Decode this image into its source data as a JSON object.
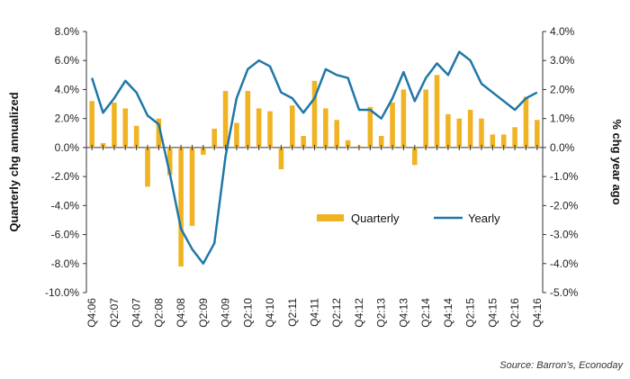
{
  "chart_data": {
    "type": "bar",
    "categories": [
      "Q4:06",
      "Q1:07",
      "Q2:07",
      "Q3:07",
      "Q4:07",
      "Q1:08",
      "Q2:08",
      "Q3:08",
      "Q4:08",
      "Q1:09",
      "Q2:09",
      "Q3:09",
      "Q4:09",
      "Q1:10",
      "Q2:10",
      "Q3:10",
      "Q4:10",
      "Q1:11",
      "Q2:11",
      "Q3:11",
      "Q4:11",
      "Q1:12",
      "Q2:12",
      "Q3:12",
      "Q4:12",
      "Q1:13",
      "Q2:13",
      "Q3:13",
      "Q4:13",
      "Q1:14",
      "Q2:14",
      "Q3:14",
      "Q4:14",
      "Q1:15",
      "Q2:15",
      "Q3:15",
      "Q4:15",
      "Q1:16",
      "Q2:16",
      "Q3:16",
      "Q4:16"
    ],
    "x_tick_labels": [
      "Q4:06",
      "Q2:07",
      "Q4:07",
      "Q2:08",
      "Q4:08",
      "Q2:09",
      "Q4:09",
      "Q2:10",
      "Q4:10",
      "Q2:11",
      "Q4:11",
      "Q2:12",
      "Q4:12",
      "Q2:13",
      "Q4:13",
      "Q2:14",
      "Q4:14",
      "Q2:15",
      "Q4:15",
      "Q2:16",
      "Q4:16"
    ],
    "series": [
      {
        "name": "Quarterly",
        "axis": "left",
        "kind": "bar",
        "color": "#f0b323",
        "values": [
          3.2,
          0.3,
          3.1,
          2.7,
          1.5,
          -2.7,
          2.0,
          -1.9,
          -8.2,
          -5.4,
          -0.5,
          1.3,
          3.9,
          1.7,
          3.9,
          2.7,
          2.5,
          -1.5,
          2.9,
          0.8,
          4.6,
          2.7,
          1.9,
          0.5,
          0.1,
          2.8,
          0.8,
          3.1,
          4.0,
          -1.2,
          4.0,
          5.0,
          2.3,
          2.0,
          2.6,
          2.0,
          0.9,
          0.9,
          1.4,
          3.5,
          1.9
        ]
      },
      {
        "name": "Yearly",
        "axis": "right",
        "kind": "line",
        "color": "#1f77a8",
        "values": [
          2.4,
          1.2,
          1.7,
          2.3,
          1.9,
          1.1,
          0.8,
          -0.9,
          -2.8,
          -3.5,
          -4.0,
          -3.3,
          -0.3,
          1.7,
          2.7,
          3.0,
          2.8,
          1.9,
          1.7,
          1.2,
          1.7,
          2.7,
          2.5,
          2.4,
          1.3,
          1.3,
          1.0,
          1.7,
          2.6,
          1.6,
          2.4,
          2.9,
          2.5,
          3.3,
          3.0,
          2.2,
          1.9,
          1.6,
          1.3,
          1.7,
          1.9
        ]
      }
    ],
    "ylabel": "Quarterly chg annualized",
    "y2label": "% chg year ago",
    "ylim": [
      -10,
      8
    ],
    "y2lim": [
      -5,
      4
    ],
    "y_ticks": [
      "8.0%",
      "6.0%",
      "4.0%",
      "2.0%",
      "0.0%",
      "-2.0%",
      "-4.0%",
      "-6.0%",
      "-8.0%",
      "-10.0%"
    ],
    "y2_ticks": [
      "4.0%",
      "3.0%",
      "2.0%",
      "1.0%",
      "0.0%",
      "-1.0%",
      "-2.0%",
      "-3.0%",
      "-4.0%",
      "-5.0%"
    ],
    "grid": false,
    "legend_position": "lower-right",
    "source": "Source: Barron’s, Econoday"
  }
}
